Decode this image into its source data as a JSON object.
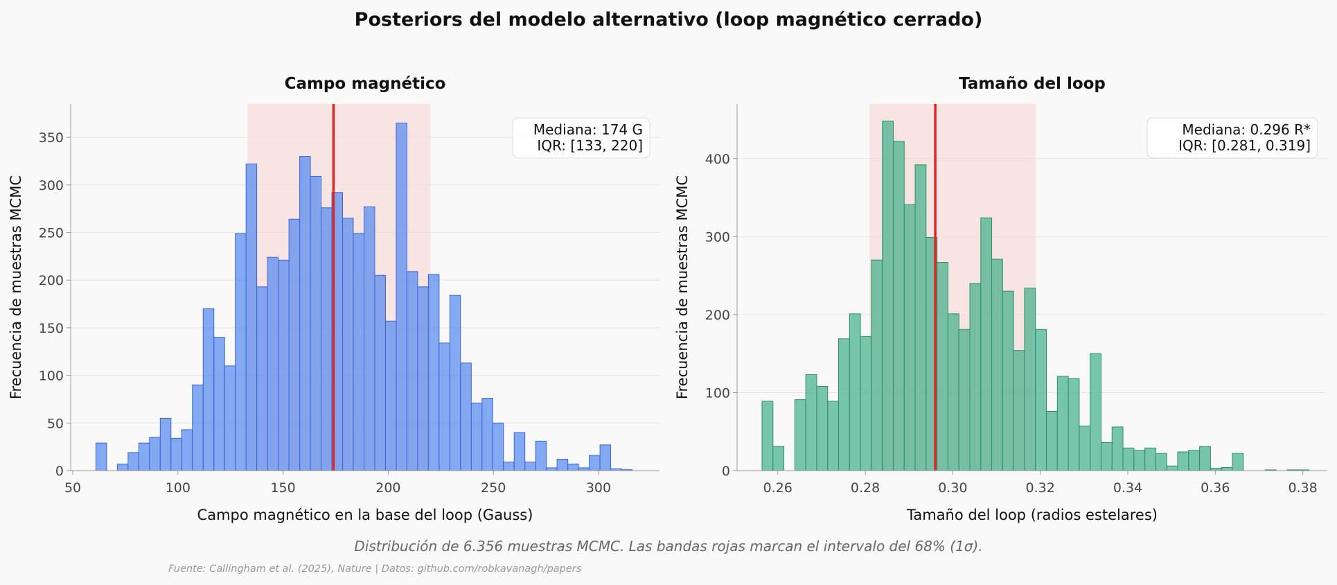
{
  "title": "Posteriors del modelo alternativo (loop magnético cerrado)",
  "caption": "Distribución de 6.356 muestras MCMC. Las bandas rojas marcan el intervalo del 68% (1σ).",
  "source": "Fuente: Callingham et al. (2025), Nature | Datos: github.com/robkavanagh/papers",
  "colors": {
    "bars_left": "#5b8def",
    "bars_right": "#4bb38f",
    "median_line": "#dc2626",
    "iqr_band": "#f9d5d5"
  },
  "chart_data": [
    {
      "type": "bar",
      "title": "Campo magnético",
      "xlabel": "Campo magnético en la base del loop (Gauss)",
      "ylabel": "Frecuencia de muestras MCMC",
      "xlim": [
        49,
        329
      ],
      "ylim": [
        0,
        385
      ],
      "xticks": [
        50,
        100,
        150,
        200,
        250,
        300
      ],
      "xtick_labels": [
        "50",
        "100",
        "150",
        "200",
        "250",
        "300"
      ],
      "yticks": [
        0,
        50,
        100,
        150,
        200,
        250,
        300,
        350
      ],
      "bin_start": 61,
      "bin_width": 5.1,
      "values": [
        29,
        0,
        7,
        19,
        29,
        35,
        55,
        34,
        43,
        90,
        170,
        140,
        110,
        249,
        322,
        193,
        224,
        221,
        264,
        330,
        309,
        276,
        292,
        265,
        249,
        277,
        205,
        157,
        365,
        209,
        193,
        206,
        134,
        184,
        113,
        71,
        76,
        50,
        9,
        40,
        9,
        31,
        3,
        12,
        7,
        3,
        16,
        27,
        2,
        1
      ],
      "median": 174,
      "iqr": [
        133,
        220
      ],
      "annotation": [
        "Mediana: 174 G",
        "IQR: [133, 220]"
      ],
      "grid": true
    },
    {
      "type": "bar",
      "title": "Tamaño del loop",
      "xlabel": "Tamaño del loop (radios estelares)",
      "ylabel": "Frecuencia de muestras MCMC",
      "xlim": [
        0.2507,
        0.3856
      ],
      "ylim": [
        0,
        470
      ],
      "xticks": [
        0.26,
        0.28,
        0.3,
        0.32,
        0.34,
        0.36,
        0.38
      ],
      "xtick_labels": [
        "0.26",
        "0.28",
        "0.30",
        "0.32",
        "0.34",
        "0.36",
        "0.38"
      ],
      "yticks": [
        0,
        100,
        200,
        300,
        400
      ],
      "bin_start": 0.2564,
      "bin_width": 0.0025,
      "values": [
        89,
        31,
        0,
        91,
        123,
        108,
        89,
        169,
        201,
        172,
        270,
        448,
        422,
        341,
        392,
        299,
        267,
        201,
        181,
        240,
        324,
        271,
        230,
        154,
        234,
        181,
        76,
        121,
        118,
        57,
        150,
        36,
        56,
        29,
        26,
        29,
        22,
        6,
        24,
        26,
        31,
        3,
        4,
        22,
        0,
        0,
        1,
        0,
        1,
        1
      ],
      "median": 0.296,
      "iqr": [
        0.281,
        0.319
      ],
      "annotation": [
        "Mediana: 0.296 R*",
        "IQR: [0.281, 0.319]"
      ],
      "grid": true
    }
  ]
}
